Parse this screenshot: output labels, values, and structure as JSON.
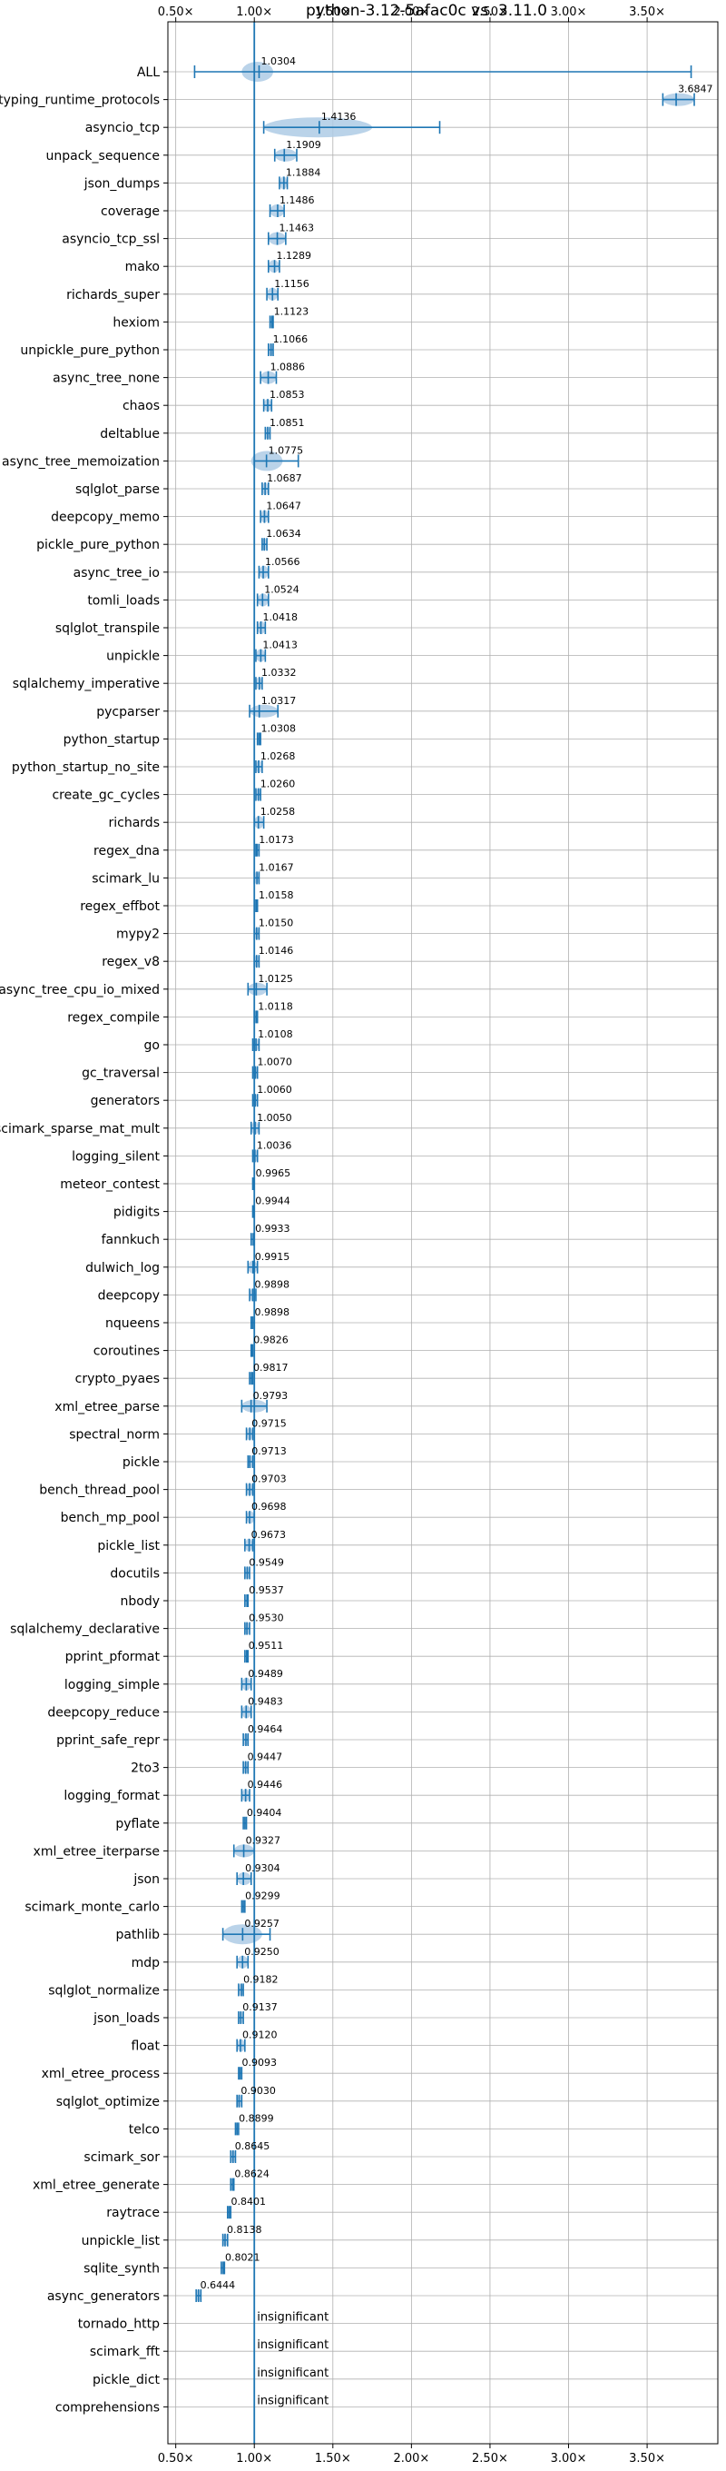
{
  "chart_data": {
    "type": "violin",
    "title": "python-3.12-5afac0c vs. 3.11.0",
    "xlabel": "",
    "ylabel": "",
    "xlim": [
      0.45,
      3.95
    ],
    "x_ticks": [
      0.5,
      1.0,
      1.5,
      2.0,
      2.5,
      3.0,
      3.5
    ],
    "x_tick_labels": [
      "0.50×",
      "1.00×",
      "1.50×",
      "2.00×",
      "2.50×",
      "3.00×",
      "3.50×"
    ],
    "grid": true,
    "reference_line": 1.0,
    "color": "#1f77b4",
    "violin_color": "#aecbe5",
    "insignificant_label": "insignificant",
    "benchmarks": [
      {
        "name": "ALL",
        "value": 1.0304,
        "label": "1.0304",
        "min": 0.62,
        "max": 3.78,
        "spread": [
          0.92,
          1.12
        ]
      },
      {
        "name": "typing_runtime_protocols",
        "value": 3.6847,
        "label": "3.6847",
        "min": 3.6,
        "max": 3.8
      },
      {
        "name": "asyncio_tcp",
        "value": 1.4136,
        "label": "1.4136",
        "min": 1.06,
        "max": 2.18,
        "spread": [
          1.06,
          1.75
        ]
      },
      {
        "name": "unpack_sequence",
        "value": 1.1909,
        "label": "1.1909",
        "min": 1.13,
        "max": 1.27
      },
      {
        "name": "json_dumps",
        "value": 1.1884,
        "label": "1.1884",
        "min": 1.16,
        "max": 1.21
      },
      {
        "name": "coverage",
        "value": 1.1486,
        "label": "1.1486",
        "min": 1.1,
        "max": 1.19
      },
      {
        "name": "asyncio_tcp_ssl",
        "value": 1.1463,
        "label": "1.1463",
        "min": 1.09,
        "max": 1.2
      },
      {
        "name": "mako",
        "value": 1.1289,
        "label": "1.1289",
        "min": 1.09,
        "max": 1.16
      },
      {
        "name": "richards_super",
        "value": 1.1156,
        "label": "1.1156",
        "min": 1.08,
        "max": 1.15
      },
      {
        "name": "hexiom",
        "value": 1.1123,
        "label": "1.1123",
        "min": 1.1,
        "max": 1.12
      },
      {
        "name": "unpickle_pure_python",
        "value": 1.1066,
        "label": "1.1066",
        "min": 1.09,
        "max": 1.12
      },
      {
        "name": "async_tree_none",
        "value": 1.0886,
        "label": "1.0886",
        "min": 1.04,
        "max": 1.14
      },
      {
        "name": "chaos",
        "value": 1.0853,
        "label": "1.0853",
        "min": 1.06,
        "max": 1.11
      },
      {
        "name": "deltablue",
        "value": 1.0851,
        "label": "1.0851",
        "min": 1.07,
        "max": 1.1
      },
      {
        "name": "async_tree_memoization",
        "value": 1.0775,
        "label": "1.0775",
        "min": 1.0,
        "max": 1.28,
        "spread": [
          0.98,
          1.18
        ]
      },
      {
        "name": "sqlglot_parse",
        "value": 1.0687,
        "label": "1.0687",
        "min": 1.05,
        "max": 1.09
      },
      {
        "name": "deepcopy_memo",
        "value": 1.0647,
        "label": "1.0647",
        "min": 1.04,
        "max": 1.09
      },
      {
        "name": "pickle_pure_python",
        "value": 1.0634,
        "label": "1.0634",
        "min": 1.05,
        "max": 1.08
      },
      {
        "name": "async_tree_io",
        "value": 1.0566,
        "label": "1.0566",
        "min": 1.03,
        "max": 1.09
      },
      {
        "name": "tomli_loads",
        "value": 1.0524,
        "label": "1.0524",
        "min": 1.02,
        "max": 1.09
      },
      {
        "name": "sqlglot_transpile",
        "value": 1.0418,
        "label": "1.0418",
        "min": 1.02,
        "max": 1.07
      },
      {
        "name": "unpickle",
        "value": 1.0413,
        "label": "1.0413",
        "min": 1.01,
        "max": 1.07
      },
      {
        "name": "sqlalchemy_imperative",
        "value": 1.0332,
        "label": "1.0332",
        "min": 1.01,
        "max": 1.05
      },
      {
        "name": "pycparser",
        "value": 1.0317,
        "label": "1.0317",
        "min": 0.97,
        "max": 1.15
      },
      {
        "name": "python_startup",
        "value": 1.0308,
        "label": "1.0308",
        "min": 1.02,
        "max": 1.04
      },
      {
        "name": "python_startup_no_site",
        "value": 1.0268,
        "label": "1.0268",
        "min": 1.01,
        "max": 1.05
      },
      {
        "name": "create_gc_cycles",
        "value": 1.026,
        "label": "1.0260",
        "min": 1.01,
        "max": 1.04
      },
      {
        "name": "richards",
        "value": 1.0258,
        "label": "1.0258",
        "min": 1.0,
        "max": 1.06
      },
      {
        "name": "regex_dna",
        "value": 1.0173,
        "label": "1.0173",
        "min": 1.01,
        "max": 1.03
      },
      {
        "name": "scimark_lu",
        "value": 1.0167,
        "label": "1.0167",
        "min": 1.0,
        "max": 1.03
      },
      {
        "name": "regex_effbot",
        "value": 1.0158,
        "label": "1.0158",
        "min": 1.01,
        "max": 1.02
      },
      {
        "name": "mypy2",
        "value": 1.015,
        "label": "1.0150",
        "min": 1.0,
        "max": 1.03
      },
      {
        "name": "regex_v8",
        "value": 1.0146,
        "label": "1.0146",
        "min": 1.0,
        "max": 1.03
      },
      {
        "name": "async_tree_cpu_io_mixed",
        "value": 1.0125,
        "label": "1.0125",
        "min": 0.96,
        "max": 1.08
      },
      {
        "name": "regex_compile",
        "value": 1.0118,
        "label": "1.0118",
        "min": 1.0,
        "max": 1.02
      },
      {
        "name": "go",
        "value": 1.0108,
        "label": "1.0108",
        "min": 0.99,
        "max": 1.03
      },
      {
        "name": "gc_traversal",
        "value": 1.007,
        "label": "1.0070",
        "min": 0.99,
        "max": 1.02
      },
      {
        "name": "generators",
        "value": 1.006,
        "label": "1.0060",
        "min": 0.99,
        "max": 1.02
      },
      {
        "name": "scimark_sparse_mat_mult",
        "value": 1.005,
        "label": "1.0050",
        "min": 0.98,
        "max": 1.03
      },
      {
        "name": "logging_silent",
        "value": 1.0036,
        "label": "1.0036",
        "min": 0.99,
        "max": 1.02
      },
      {
        "name": "meteor_contest",
        "value": 0.9965,
        "label": "0.9965",
        "min": 0.99,
        "max": 1.0
      },
      {
        "name": "pidigits",
        "value": 0.9944,
        "label": "0.9944",
        "min": 0.99,
        "max": 1.0
      },
      {
        "name": "fannkuch",
        "value": 0.9933,
        "label": "0.9933",
        "min": 0.98,
        "max": 1.0
      },
      {
        "name": "dulwich_log",
        "value": 0.9915,
        "label": "0.9915",
        "min": 0.96,
        "max": 1.02
      },
      {
        "name": "deepcopy",
        "value": 0.9898,
        "label": "0.9898",
        "min": 0.97,
        "max": 1.01
      },
      {
        "name": "nqueens",
        "value": 0.9898,
        "label": "0.9898",
        "min": 0.98,
        "max": 1.0
      },
      {
        "name": "coroutines",
        "value": 0.9826,
        "label": "0.9826",
        "min": 0.98,
        "max": 0.99
      },
      {
        "name": "crypto_pyaes",
        "value": 0.9817,
        "label": "0.9817",
        "min": 0.97,
        "max": 0.99
      },
      {
        "name": "xml_etree_parse",
        "value": 0.9793,
        "label": "0.9793",
        "min": 0.92,
        "max": 1.08
      },
      {
        "name": "spectral_norm",
        "value": 0.9715,
        "label": "0.9715",
        "min": 0.95,
        "max": 0.99
      },
      {
        "name": "pickle",
        "value": 0.9713,
        "label": "0.9713",
        "min": 0.96,
        "max": 0.99
      },
      {
        "name": "bench_thread_pool",
        "value": 0.9703,
        "label": "0.9703",
        "min": 0.95,
        "max": 0.99
      },
      {
        "name": "bench_mp_pool",
        "value": 0.9698,
        "label": "0.9698",
        "min": 0.95,
        "max": 1.0
      },
      {
        "name": "pickle_list",
        "value": 0.9673,
        "label": "0.9673",
        "min": 0.94,
        "max": 0.99
      },
      {
        "name": "docutils",
        "value": 0.9549,
        "label": "0.9549",
        "min": 0.94,
        "max": 0.97
      },
      {
        "name": "nbody",
        "value": 0.9537,
        "label": "0.9537",
        "min": 0.94,
        "max": 0.96
      },
      {
        "name": "sqlalchemy_declarative",
        "value": 0.953,
        "label": "0.9530",
        "min": 0.94,
        "max": 0.97
      },
      {
        "name": "pprint_pformat",
        "value": 0.9511,
        "label": "0.9511",
        "min": 0.94,
        "max": 0.96
      },
      {
        "name": "logging_simple",
        "value": 0.9489,
        "label": "0.9489",
        "min": 0.92,
        "max": 0.98
      },
      {
        "name": "deepcopy_reduce",
        "value": 0.9483,
        "label": "0.9483",
        "min": 0.92,
        "max": 0.98
      },
      {
        "name": "pprint_safe_repr",
        "value": 0.9464,
        "label": "0.9464",
        "min": 0.93,
        "max": 0.96
      },
      {
        "name": "2to3",
        "value": 0.9447,
        "label": "0.9447",
        "min": 0.93,
        "max": 0.96
      },
      {
        "name": "logging_format",
        "value": 0.9446,
        "label": "0.9446",
        "min": 0.92,
        "max": 0.97
      },
      {
        "name": "pyflate",
        "value": 0.9404,
        "label": "0.9404",
        "min": 0.93,
        "max": 0.95
      },
      {
        "name": "xml_etree_iterparse",
        "value": 0.9327,
        "label": "0.9327",
        "min": 0.87,
        "max": 1.0
      },
      {
        "name": "json",
        "value": 0.9304,
        "label": "0.9304",
        "min": 0.89,
        "max": 0.98
      },
      {
        "name": "scimark_monte_carlo",
        "value": 0.9299,
        "label": "0.9299",
        "min": 0.92,
        "max": 0.94
      },
      {
        "name": "pathlib",
        "value": 0.9257,
        "label": "0.9257",
        "min": 0.8,
        "max": 1.1,
        "spread": [
          0.8,
          1.05
        ]
      },
      {
        "name": "mdp",
        "value": 0.925,
        "label": "0.9250",
        "min": 0.89,
        "max": 0.96
      },
      {
        "name": "sqlglot_normalize",
        "value": 0.9182,
        "label": "0.9182",
        "min": 0.9,
        "max": 0.93
      },
      {
        "name": "json_loads",
        "value": 0.9137,
        "label": "0.9137",
        "min": 0.9,
        "max": 0.93
      },
      {
        "name": "float",
        "value": 0.912,
        "label": "0.9120",
        "min": 0.89,
        "max": 0.94
      },
      {
        "name": "xml_etree_process",
        "value": 0.9093,
        "label": "0.9093",
        "min": 0.9,
        "max": 0.92
      },
      {
        "name": "sqlglot_optimize",
        "value": 0.903,
        "label": "0.9030",
        "min": 0.89,
        "max": 0.92
      },
      {
        "name": "telco",
        "value": 0.8899,
        "label": "0.8899",
        "min": 0.88,
        "max": 0.9
      },
      {
        "name": "scimark_sor",
        "value": 0.8645,
        "label": "0.8645",
        "min": 0.85,
        "max": 0.88
      },
      {
        "name": "xml_etree_generate",
        "value": 0.8624,
        "label": "0.8624",
        "min": 0.85,
        "max": 0.87
      },
      {
        "name": "raytrace",
        "value": 0.8401,
        "label": "0.8401",
        "min": 0.83,
        "max": 0.85
      },
      {
        "name": "unpickle_list",
        "value": 0.8138,
        "label": "0.8138",
        "min": 0.8,
        "max": 0.83
      },
      {
        "name": "sqlite_synth",
        "value": 0.8021,
        "label": "0.8021",
        "min": 0.79,
        "max": 0.81
      },
      {
        "name": "async_generators",
        "value": 0.6444,
        "label": "0.6444",
        "min": 0.63,
        "max": 0.66
      },
      {
        "name": "tornado_http",
        "value": null,
        "label": "insignificant"
      },
      {
        "name": "scimark_fft",
        "value": null,
        "label": "insignificant"
      },
      {
        "name": "pickle_dict",
        "value": null,
        "label": "insignificant"
      },
      {
        "name": "comprehensions",
        "value": null,
        "label": "insignificant"
      }
    ]
  }
}
